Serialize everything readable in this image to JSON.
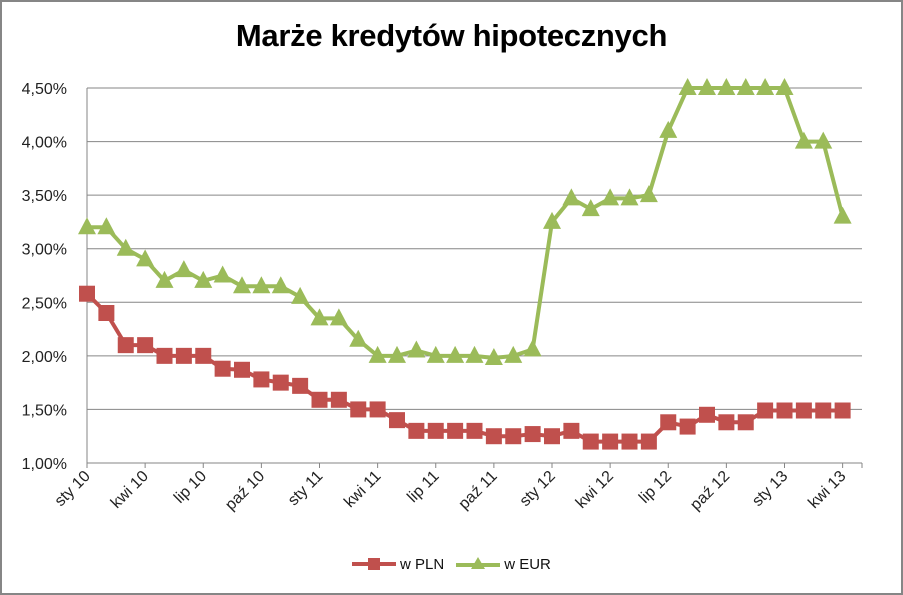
{
  "chart_data": {
    "type": "line",
    "title": "Marże kredytów hipotecznych",
    "xlabel": "",
    "ylabel": "",
    "ylim": [
      1.0,
      4.5
    ],
    "y_ticks": [
      "1,00%",
      "1,50%",
      "2,00%",
      "2,50%",
      "3,00%",
      "3,50%",
      "4,00%",
      "4,50%"
    ],
    "x_tick_labels": [
      "sty 10",
      "kwi 10",
      "lip 10",
      "paź 10",
      "sty 11",
      "kwi 11",
      "lip 11",
      "paź 11",
      "sty 12",
      "kwi 12",
      "lip 12",
      "paź 12",
      "sty 13",
      "kwi 13"
    ],
    "grid": "horizontal",
    "legend_position": "bottom",
    "x": [
      "sty 10",
      "lut 10",
      "mar 10",
      "kwi 10",
      "maj 10",
      "cze 10",
      "lip 10",
      "sie 10",
      "wrz 10",
      "paź 10",
      "lis 10",
      "gru 10",
      "sty 11",
      "lut 11",
      "mar 11",
      "kwi 11",
      "maj 11",
      "cze 11",
      "lip 11",
      "sie 11",
      "wrz 11",
      "paź 11",
      "lis 11",
      "gru 11",
      "sty 12",
      "lut 12",
      "mar 12",
      "kwi 12",
      "maj 12",
      "cze 12",
      "lip 12",
      "sie 12",
      "wrz 12",
      "paź 12",
      "lis 12",
      "gru 12",
      "sty 13",
      "lut 13",
      "mar 13",
      "kwi 13"
    ],
    "series": [
      {
        "name": "w PLN",
        "color": "#C0504D",
        "marker": "square",
        "values": [
          2.58,
          2.4,
          2.1,
          2.1,
          2.0,
          2.0,
          2.0,
          1.88,
          1.87,
          1.78,
          1.75,
          1.72,
          1.59,
          1.59,
          1.5,
          1.5,
          1.4,
          1.3,
          1.3,
          1.3,
          1.3,
          1.25,
          1.25,
          1.27,
          1.25,
          1.3,
          1.2,
          1.2,
          1.2,
          1.2,
          1.38,
          1.34,
          1.45,
          1.38,
          1.38,
          1.49,
          1.49,
          1.49,
          1.49,
          1.49
        ]
      },
      {
        "name": "w EUR",
        "color": "#9BBB59",
        "marker": "triangle",
        "values": [
          3.2,
          3.2,
          3.0,
          2.9,
          2.7,
          2.8,
          2.7,
          2.75,
          2.65,
          2.65,
          2.65,
          2.55,
          2.35,
          2.35,
          2.15,
          2.0,
          2.0,
          2.05,
          2.0,
          2.0,
          2.0,
          1.98,
          2.0,
          2.06,
          3.25,
          3.47,
          3.37,
          3.47,
          3.47,
          3.5,
          4.1,
          4.5,
          4.5,
          4.5,
          4.5,
          4.5,
          4.5,
          4.0,
          4.0,
          3.3
        ]
      }
    ]
  },
  "legend": {
    "pln_label": "w PLN",
    "eur_label": "w EUR"
  }
}
